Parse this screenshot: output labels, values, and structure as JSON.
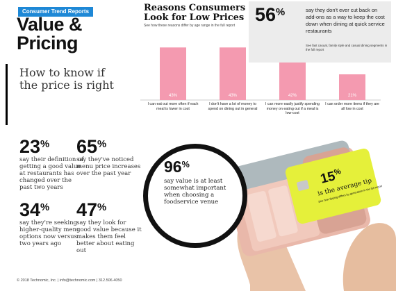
{
  "header": {
    "report_tag": "Consumer Trend Reports",
    "title_line1": "Value &",
    "title_line2": "Pricing",
    "subtitle_line1": "How to know if",
    "subtitle_line2": "the price is right"
  },
  "chart_data": {
    "type": "bar",
    "title": "Reasons Consumers Look for Low Prices",
    "subtitle": "See how these reasons differ by age range in the full report",
    "categories": [
      "I can eat out more often if each meal is lower in cost",
      "I don't have a lot of money to spend on dining out in general",
      "I can more easily justify spending money on eating out if a meal is low-cost",
      "I can order more items if they are all low in cost"
    ],
    "values": [
      43,
      43,
      42,
      21
    ],
    "data_labels": [
      "43%",
      "43%",
      "42%",
      "21%"
    ],
    "ylim": [
      0,
      50
    ],
    "bar_color": "#f49ab0"
  },
  "callout_56": {
    "value": "56",
    "unit": "%",
    "text": "say they don't ever cut back on add-ons as a way to keep the cost down when dining at quick service restaurants",
    "note": "See fast casual, family style and casual dining segments in the full report"
  },
  "stats": [
    {
      "value": "23",
      "unit": "%",
      "text": "say their definition of getting a good value at restaurants has changed over the past two years"
    },
    {
      "value": "65",
      "unit": "%",
      "text": "say they've noticed menu price increases over the past year"
    },
    {
      "value": "34",
      "unit": "%",
      "text": "say they're seeking higher-quality menu options now versus two years ago"
    },
    {
      "value": "47",
      "unit": "%",
      "text": "say they look for good value because it makes them feel better about eating out"
    }
  ],
  "stat_96": {
    "value": "96",
    "unit": "%",
    "text": "say value is at least somewhat important when choosing a foodservice venue"
  },
  "card": {
    "value": "15",
    "unit": "%",
    "line1": "is the average tip",
    "line2": "See how tipping differs by generation in the full report"
  },
  "footer": {
    "text": "© 2018 Technomic, Inc. | info@technomic.com | 312.506.4050"
  }
}
